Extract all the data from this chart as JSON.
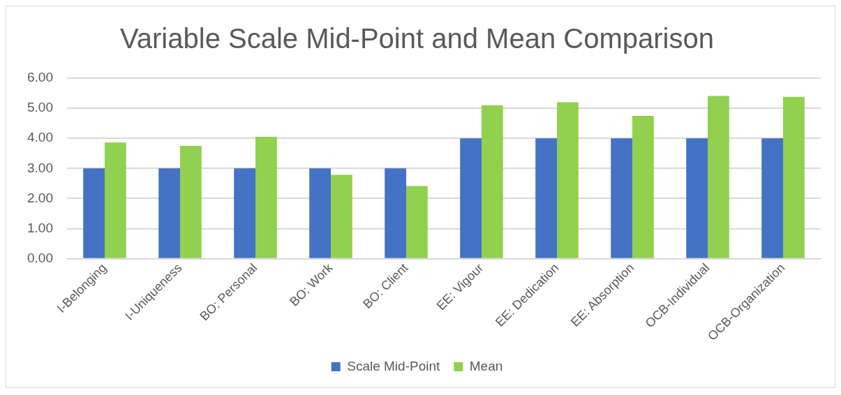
{
  "chart_data": {
    "type": "bar",
    "title": "Variable Scale Mid-Point and Mean Comparison",
    "categories": [
      "I-Belonging",
      "I-Uniqueness",
      "BO: Personal",
      "BO: Work",
      "BO: Client",
      "EE: Vigour",
      "EE: Dedication",
      "EE: Absorption",
      "OCB-Individual",
      "OCB-Organization"
    ],
    "series": [
      {
        "name": "Scale Mid-Point",
        "color": "#4472c4",
        "values": [
          3,
          3,
          3,
          3,
          3,
          4,
          4,
          4,
          4,
          4
        ]
      },
      {
        "name": "Mean",
        "color": "#92d050",
        "values": [
          3.86,
          3.75,
          4.05,
          2.79,
          2.42,
          5.1,
          5.2,
          4.75,
          5.41,
          5.38
        ]
      }
    ],
    "ylim": [
      0,
      6
    ],
    "yticks": [
      {
        "value": 0,
        "label": "0.00"
      },
      {
        "value": 1,
        "label": "1.00"
      },
      {
        "value": 2,
        "label": "2.00"
      },
      {
        "value": 3,
        "label": "3.00"
      },
      {
        "value": 4,
        "label": "4.00"
      },
      {
        "value": 5,
        "label": "5.00"
      },
      {
        "value": 6,
        "label": "6.00"
      }
    ],
    "grid": "y",
    "legend": "bottom"
  }
}
